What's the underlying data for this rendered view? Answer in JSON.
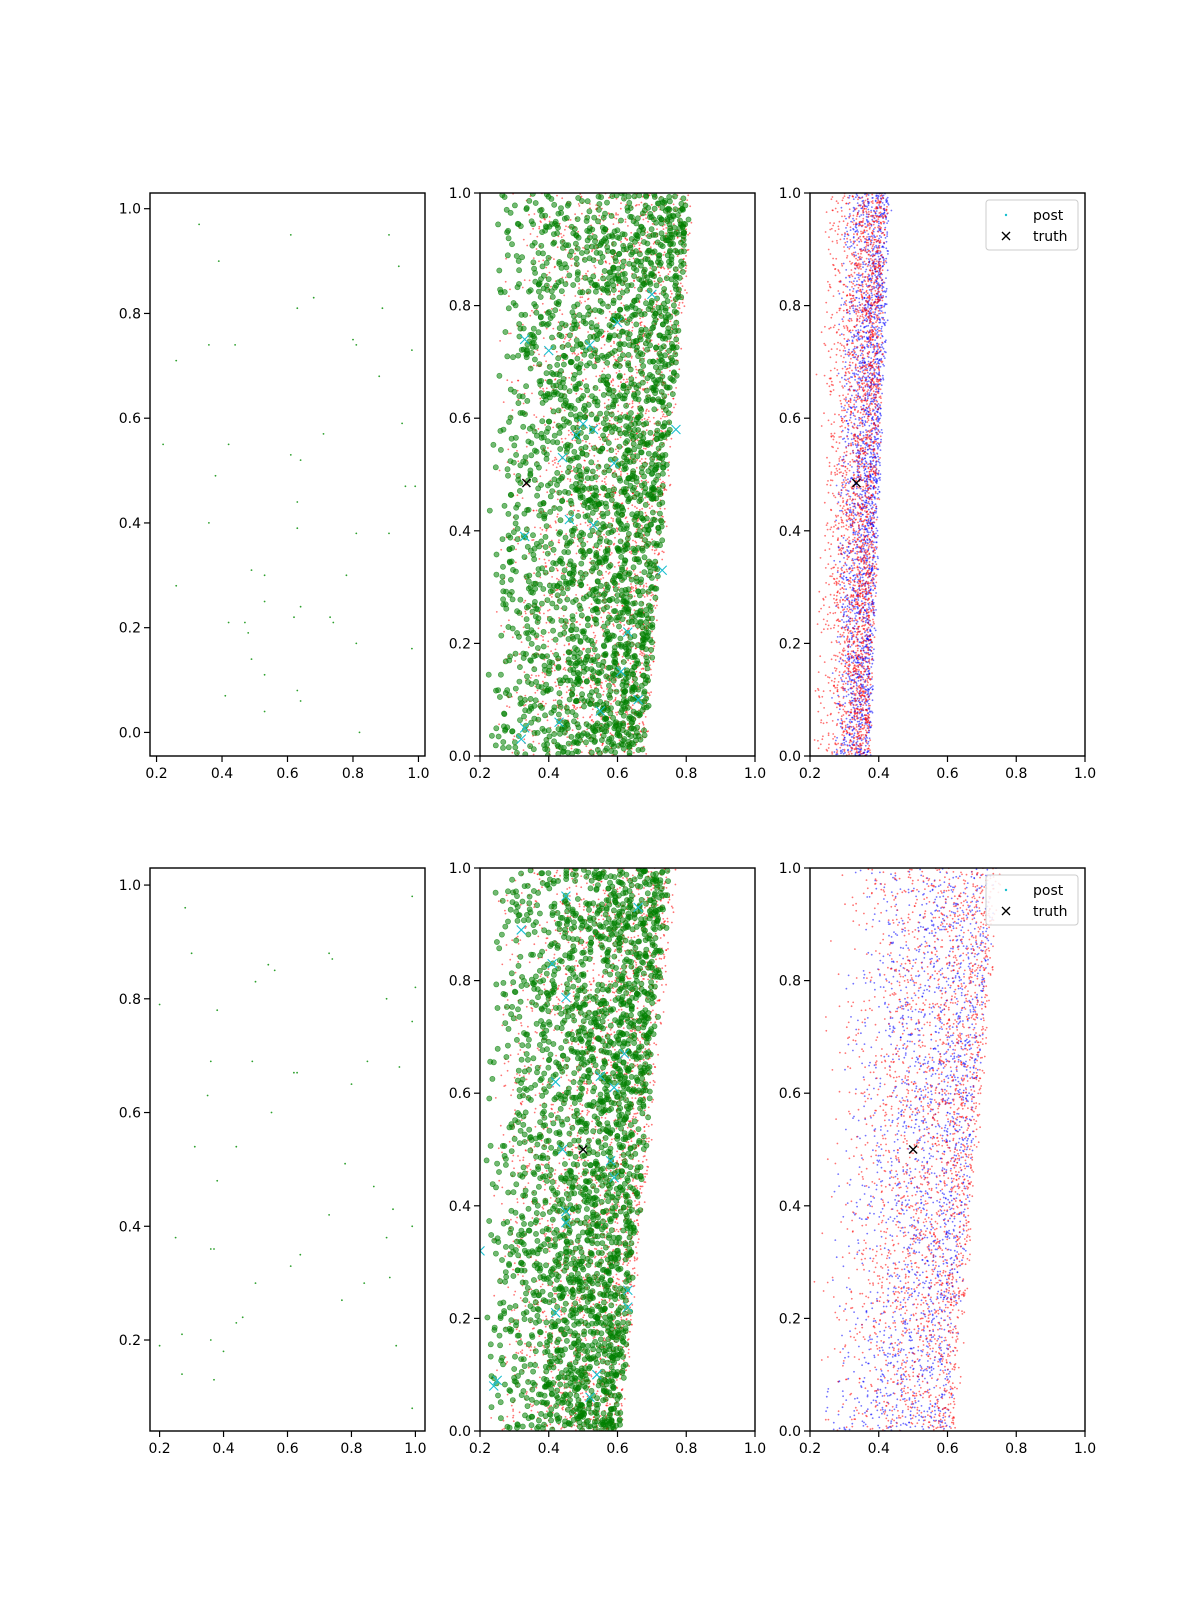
{
  "figure": {
    "background": "#ffffff"
  },
  "colors": {
    "obs": "#2ca02c",
    "green": "#008000",
    "red": "#ff0000",
    "blue": "#0000ff",
    "cyan": "#17becf",
    "truth": "#000000"
  },
  "chart_data": [
    {
      "id": "r1c1",
      "type": "scatter",
      "xlim": [
        0.18,
        1.02
      ],
      "ylim": [
        -0.045,
        1.03
      ],
      "xticks": [
        "0.2",
        "0.4",
        "0.6",
        "0.8",
        "1.0"
      ],
      "yticks": [
        "0.0",
        "0.2",
        "0.4",
        "0.6",
        "0.8",
        "1.0"
      ],
      "series": [
        {
          "kind": "obs",
          "marker": "dot",
          "color": "#2ca02c",
          "points": [
            [
              0.33,
              0.97
            ],
            [
              0.39,
              0.9
            ],
            [
              0.61,
              0.95
            ],
            [
              0.91,
              0.95
            ],
            [
              0.94,
              0.89
            ],
            [
              0.63,
              0.81
            ],
            [
              0.68,
              0.83
            ],
            [
              0.89,
              0.81
            ],
            [
              0.36,
              0.74
            ],
            [
              0.44,
              0.74
            ],
            [
              0.8,
              0.75
            ],
            [
              0.81,
              0.74
            ],
            [
              0.26,
              0.71
            ],
            [
              0.98,
              0.73
            ],
            [
              0.88,
              0.68
            ],
            [
              0.22,
              0.55
            ],
            [
              0.42,
              0.55
            ],
            [
              0.71,
              0.57
            ],
            [
              0.95,
              0.59
            ],
            [
              0.61,
              0.53
            ],
            [
              0.64,
              0.52
            ],
            [
              0.38,
              0.49
            ],
            [
              0.96,
              0.47
            ],
            [
              0.99,
              0.47
            ],
            [
              0.63,
              0.44
            ],
            [
              0.36,
              0.4
            ],
            [
              0.63,
              0.39
            ],
            [
              0.81,
              0.38
            ],
            [
              0.91,
              0.38
            ],
            [
              0.49,
              0.31
            ],
            [
              0.53,
              0.3
            ],
            [
              0.78,
              0.3
            ],
            [
              0.26,
              0.28
            ],
            [
              0.53,
              0.25
            ],
            [
              0.64,
              0.24
            ],
            [
              0.62,
              0.22
            ],
            [
              0.73,
              0.22
            ],
            [
              0.74,
              0.21
            ],
            [
              0.42,
              0.21
            ],
            [
              0.47,
              0.21
            ],
            [
              0.48,
              0.19
            ],
            [
              0.81,
              0.17
            ],
            [
              0.98,
              0.16
            ],
            [
              0.49,
              0.14
            ],
            [
              0.53,
              0.11
            ],
            [
              0.41,
              0.07
            ],
            [
              0.63,
              0.08
            ],
            [
              0.64,
              0.06
            ],
            [
              0.53,
              0.04
            ],
            [
              0.82,
              0.0
            ]
          ]
        }
      ]
    },
    {
      "id": "r1c2",
      "type": "scatter",
      "xlim": [
        0.2,
        1.0
      ],
      "ylim": [
        0.0,
        1.0
      ],
      "xticks": [
        "0.2",
        "0.4",
        "0.6",
        "0.8",
        "1.0"
      ],
      "yticks": [
        "0.0",
        "0.2",
        "0.4",
        "0.6",
        "0.8",
        "1.0"
      ],
      "series": [
        {
          "kind": "cloud",
          "marker": "dot",
          "color": "#ff0000",
          "count": 2600,
          "seed": 11,
          "left": [
            0.24,
            0.27
          ],
          "right": [
            0.68,
            0.82
          ],
          "skew": 0.55
        },
        {
          "kind": "cloud",
          "marker": "circle",
          "color": "#008000",
          "count": 2300,
          "seed": 23,
          "left": [
            0.22,
            0.25
          ],
          "right": [
            0.67,
            0.81
          ],
          "skew": 0.6
        },
        {
          "kind": "points",
          "marker": "x",
          "color": "#17becf",
          "points": [
            [
              0.33,
              0.74
            ],
            [
              0.4,
              0.72
            ],
            [
              0.52,
              0.73
            ],
            [
              0.6,
              0.77
            ],
            [
              0.7,
              0.82
            ],
            [
              0.48,
              0.57
            ],
            [
              0.5,
              0.59
            ],
            [
              0.53,
              0.58
            ],
            [
              0.59,
              0.52
            ],
            [
              0.44,
              0.53
            ],
            [
              0.77,
              0.58
            ],
            [
              0.46,
              0.42
            ],
            [
              0.53,
              0.41
            ],
            [
              0.33,
              0.39
            ],
            [
              0.73,
              0.33
            ],
            [
              0.63,
              0.22
            ],
            [
              0.66,
              0.1
            ],
            [
              0.61,
              0.15
            ],
            [
              0.43,
              0.06
            ],
            [
              0.33,
              0.05
            ],
            [
              0.32,
              0.03
            ],
            [
              0.55,
              0.08
            ]
          ]
        },
        {
          "kind": "points",
          "marker": "x",
          "color": "#000000",
          "points": [
            [
              0.335,
              0.485
            ]
          ]
        }
      ]
    },
    {
      "id": "r1c3",
      "type": "scatter",
      "xlim": [
        0.2,
        1.0
      ],
      "ylim": [
        0.0,
        1.0
      ],
      "xticks": [
        "0.2",
        "0.4",
        "0.6",
        "0.8",
        "1.0"
      ],
      "yticks": [
        "0.0",
        "0.2",
        "0.4",
        "0.6",
        "0.8",
        "1.0"
      ],
      "legend": {
        "position": "upper-right",
        "entries": [
          {
            "label": "post",
            "marker": "dot",
            "color": "#17becf"
          },
          {
            "label": "truth",
            "marker": "x",
            "color": "#000000"
          }
        ]
      },
      "series": [
        {
          "kind": "cloud",
          "marker": "dot",
          "color": "#0000ff",
          "count": 2300,
          "seed": 37,
          "left": [
            0.26,
            0.29
          ],
          "right": [
            0.37,
            0.43
          ],
          "skew": 0.5
        },
        {
          "kind": "cloud",
          "marker": "dot",
          "color": "#ff0000",
          "count": 2600,
          "seed": 41,
          "left": [
            0.21,
            0.23
          ],
          "right": [
            0.37,
            0.42
          ],
          "skew": 0.45
        },
        {
          "kind": "points",
          "marker": "x",
          "color": "#000000",
          "points": [
            [
              0.335,
              0.485
            ]
          ]
        }
      ]
    },
    {
      "id": "r2c1",
      "type": "scatter",
      "xlim": [
        0.17,
        1.03
      ],
      "ylim": [
        0.04,
        1.03
      ],
      "xticks": [
        "0.2",
        "0.4",
        "0.6",
        "0.8",
        "1.0"
      ],
      "yticks": [
        "0.2",
        "0.4",
        "0.6",
        "0.8",
        "1.0"
      ],
      "series": [
        {
          "kind": "obs",
          "marker": "dot",
          "color": "#2ca02c",
          "points": [
            [
              0.28,
              0.96
            ],
            [
              0.99,
              0.98
            ],
            [
              0.3,
              0.88
            ],
            [
              0.73,
              0.88
            ],
            [
              0.74,
              0.87
            ],
            [
              0.54,
              0.86
            ],
            [
              0.56,
              0.85
            ],
            [
              0.5,
              0.83
            ],
            [
              0.2,
              0.79
            ],
            [
              0.38,
              0.78
            ],
            [
              0.91,
              0.8
            ],
            [
              1.0,
              0.82
            ],
            [
              0.99,
              0.76
            ],
            [
              0.36,
              0.69
            ],
            [
              0.49,
              0.69
            ],
            [
              0.62,
              0.67
            ],
            [
              0.63,
              0.67
            ],
            [
              0.85,
              0.69
            ],
            [
              0.95,
              0.68
            ],
            [
              0.35,
              0.63
            ],
            [
              0.8,
              0.65
            ],
            [
              0.55,
              0.6
            ],
            [
              0.31,
              0.54
            ],
            [
              0.44,
              0.54
            ],
            [
              0.78,
              0.51
            ],
            [
              0.38,
              0.48
            ],
            [
              0.87,
              0.47
            ],
            [
              0.93,
              0.43
            ],
            [
              0.73,
              0.42
            ],
            [
              0.99,
              0.4
            ],
            [
              0.25,
              0.38
            ],
            [
              0.36,
              0.36
            ],
            [
              0.37,
              0.36
            ],
            [
              0.64,
              0.35
            ],
            [
              0.61,
              0.33
            ],
            [
              0.91,
              0.38
            ],
            [
              0.5,
              0.3
            ],
            [
              0.84,
              0.3
            ],
            [
              0.92,
              0.31
            ],
            [
              0.77,
              0.27
            ],
            [
              0.44,
              0.23
            ],
            [
              0.46,
              0.24
            ],
            [
              0.27,
              0.21
            ],
            [
              0.36,
              0.2
            ],
            [
              0.2,
              0.19
            ],
            [
              0.4,
              0.18
            ],
            [
              0.94,
              0.19
            ],
            [
              0.27,
              0.14
            ],
            [
              0.37,
              0.13
            ],
            [
              0.99,
              0.08
            ]
          ]
        }
      ]
    },
    {
      "id": "r2c2",
      "type": "scatter",
      "xlim": [
        0.2,
        1.0
      ],
      "ylim": [
        0.0,
        1.0
      ],
      "xticks": [
        "0.2",
        "0.4",
        "0.6",
        "0.8",
        "1.0"
      ],
      "yticks": [
        "0.0",
        "0.2",
        "0.4",
        "0.6",
        "0.8",
        "1.0"
      ],
      "series": [
        {
          "kind": "cloud",
          "marker": "dot",
          "color": "#ff0000",
          "count": 2600,
          "seed": 53,
          "left": [
            0.22,
            0.25
          ],
          "right": [
            0.61,
            0.77
          ],
          "skew": 0.55
        },
        {
          "kind": "cloud",
          "marker": "circle",
          "color": "#008000",
          "count": 2300,
          "seed": 67,
          "left": [
            0.21,
            0.24
          ],
          "right": [
            0.6,
            0.75
          ],
          "skew": 0.6
        },
        {
          "kind": "points",
          "marker": "x",
          "color": "#17becf",
          "points": [
            [
              0.32,
              0.89
            ],
            [
              0.41,
              0.83
            ],
            [
              0.45,
              0.95
            ],
            [
              0.66,
              0.93
            ],
            [
              0.45,
              0.77
            ],
            [
              0.42,
              0.62
            ],
            [
              0.62,
              0.67
            ],
            [
              0.59,
              0.61
            ],
            [
              0.55,
              0.63
            ],
            [
              0.44,
              0.5
            ],
            [
              0.58,
              0.48
            ],
            [
              0.59,
              0.45
            ],
            [
              0.45,
              0.39
            ],
            [
              0.45,
              0.37
            ],
            [
              0.2,
              0.32
            ],
            [
              0.63,
              0.25
            ],
            [
              0.63,
              0.22
            ],
            [
              0.42,
              0.21
            ],
            [
              0.54,
              0.1
            ],
            [
              0.25,
              0.09
            ],
            [
              0.24,
              0.08
            ],
            [
              0.52,
              0.06
            ]
          ]
        },
        {
          "kind": "points",
          "marker": "x",
          "color": "#000000",
          "points": [
            [
              0.5,
              0.5
            ]
          ]
        }
      ]
    },
    {
      "id": "r2c3",
      "type": "scatter",
      "xlim": [
        0.2,
        1.0
      ],
      "ylim": [
        0.0,
        1.0
      ],
      "xticks": [
        "0.2",
        "0.4",
        "0.6",
        "0.8",
        "1.0"
      ],
      "yticks": [
        "0.0",
        "0.2",
        "0.4",
        "0.6",
        "0.8",
        "1.0"
      ],
      "legend": {
        "position": "upper-right",
        "entries": [
          {
            "label": "post",
            "marker": "dot",
            "color": "#17becf"
          },
          {
            "label": "truth",
            "marker": "x",
            "color": "#000000"
          }
        ]
      },
      "series": [
        {
          "kind": "cloud",
          "marker": "dot",
          "color": "#0000ff",
          "count": 2000,
          "seed": 71,
          "left": [
            0.22,
            0.32
          ],
          "right": [
            0.6,
            0.74
          ],
          "skew": 0.5
        },
        {
          "kind": "cloud",
          "marker": "dot",
          "color": "#ff0000",
          "count": 2400,
          "seed": 83,
          "left": [
            0.2,
            0.25
          ],
          "right": [
            0.62,
            0.75
          ],
          "skew": 0.45
        },
        {
          "kind": "points",
          "marker": "x",
          "color": "#000000",
          "points": [
            [
              0.5,
              0.5
            ]
          ]
        }
      ]
    }
  ]
}
